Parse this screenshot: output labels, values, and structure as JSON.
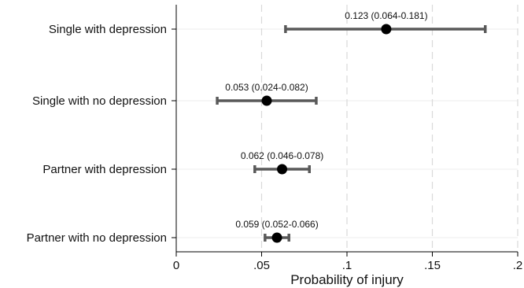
{
  "chart_data": {
    "type": "scatter",
    "title": "",
    "xlabel": "Probability of injury",
    "ylabel": "",
    "xlim": [
      0,
      0.2
    ],
    "x_ticks": [
      {
        "value": 0,
        "label": "0"
      },
      {
        "value": 0.05,
        "label": ".05"
      },
      {
        "value": 0.1,
        "label": ".1"
      },
      {
        "value": 0.15,
        "label": ".15"
      },
      {
        "value": 0.2,
        "label": ".2"
      }
    ],
    "grid": "vertical dashed at x ticks",
    "legend": "none",
    "categories": [
      "Single with depression",
      "Single with no depression",
      "Partner with depression",
      "Partner with no depression"
    ],
    "estimates": [
      0.123,
      0.053,
      0.062,
      0.059
    ],
    "ci_lower": [
      0.064,
      0.024,
      0.046,
      0.052
    ],
    "ci_upper": [
      0.181,
      0.082,
      0.078,
      0.066
    ],
    "labels": [
      "0.123 (0.064-0.181)",
      "0.053 (0.024-0.082)",
      "0.062 (0.046-0.078)",
      "0.059 (0.052-0.066)"
    ],
    "colors": {
      "point": "#000000",
      "ci_bar": "#595959",
      "grid": "#d9d9d9",
      "axis": "#000000"
    }
  }
}
